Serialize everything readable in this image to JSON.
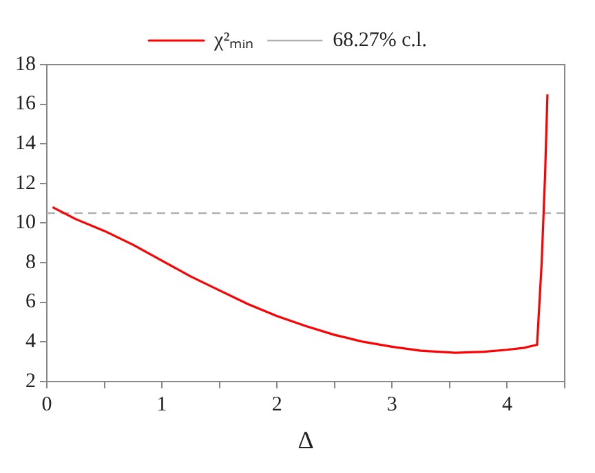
{
  "chart_data": {
    "type": "line",
    "xlabel": "Δ",
    "legend": "top",
    "marker": "none",
    "grid": false,
    "xlim": [
      0,
      4.5
    ],
    "ylim": [
      2,
      18
    ],
    "xticks": [
      0,
      {
        "value": 0.5,
        "label": null
      },
      1,
      {
        "value": 1.5,
        "label": null
      },
      2,
      {
        "value": 2.5,
        "label": null
      },
      3,
      {
        "value": 3.5,
        "label": null
      },
      4,
      {
        "value": 4.5,
        "label": null
      }
    ],
    "yticks": [
      2,
      4,
      6,
      8,
      10,
      12,
      14,
      16,
      18
    ],
    "series": [
      {
        "name": "χ²ₘᵢₙ",
        "color": "#ff0000",
        "line_style": "solid",
        "x": [
          0.05,
          0.25,
          0.5,
          0.75,
          1,
          1.25,
          1.5,
          1.75,
          2,
          2.25,
          2.5,
          2.75,
          3,
          3.25,
          3.55,
          3.8,
          4,
          4.15,
          4.26,
          4.3,
          4.33,
          4.35
        ],
        "values": [
          10.8,
          10.2,
          9.6,
          8.9,
          8.1,
          7.3,
          6.6,
          5.9,
          5.3,
          4.8,
          4.35,
          4.0,
          3.75,
          3.55,
          3.45,
          3.5,
          3.6,
          3.7,
          3.85,
          8,
          12.5,
          16.5
        ]
      }
    ],
    "ref_lines": [
      {
        "axis": "y",
        "value": 10.5,
        "label": "68.27% c.l.",
        "color": "#b0b0b0",
        "line_style": "dashed"
      }
    ]
  }
}
